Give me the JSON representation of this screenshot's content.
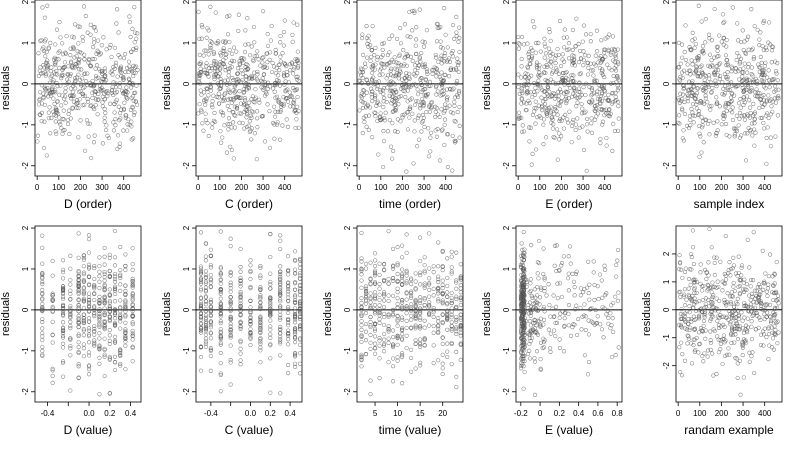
{
  "chart_data": [
    {
      "type": "scatter",
      "xlabel": "D (order)",
      "ylabel": "residuals",
      "xlim": [
        -10,
        480
      ],
      "ylim": [
        -2.25,
        2.05
      ],
      "xticks": [
        0,
        100,
        200,
        300,
        400
      ],
      "yticks": [
        -2,
        -1,
        0,
        1,
        2
      ],
      "ref_line_y": 0,
      "x_mode": "order",
      "n": 500
    },
    {
      "type": "scatter",
      "xlabel": "C (order)",
      "ylabel": "residuals",
      "xlim": [
        -10,
        480
      ],
      "ylim": [
        -2.25,
        2.05
      ],
      "xticks": [
        0,
        100,
        200,
        300,
        400
      ],
      "yticks": [
        -2,
        -1,
        0,
        1,
        2
      ],
      "ref_line_y": 0,
      "x_mode": "order",
      "n": 500
    },
    {
      "type": "scatter",
      "xlabel": "time (order)",
      "ylabel": "residuals",
      "xlim": [
        -10,
        480
      ],
      "ylim": [
        -2.25,
        2.05
      ],
      "xticks": [
        0,
        100,
        200,
        300,
        400
      ],
      "yticks": [
        -2,
        -1,
        0,
        1,
        2
      ],
      "ref_line_y": 0,
      "x_mode": "order",
      "n": 500
    },
    {
      "type": "scatter",
      "xlabel": "E (order)",
      "ylabel": "residuals",
      "xlim": [
        -10,
        480
      ],
      "ylim": [
        -2.25,
        2.05
      ],
      "xticks": [
        0,
        100,
        200,
        300,
        400
      ],
      "yticks": [
        -2,
        -1,
        0,
        1,
        2
      ],
      "ref_line_y": 0,
      "x_mode": "order",
      "n": 500
    },
    {
      "type": "scatter",
      "xlabel": "sample index",
      "ylabel": "residuals",
      "xlim": [
        -10,
        480
      ],
      "ylim": [
        -2.25,
        2.05
      ],
      "xticks": [
        0,
        100,
        200,
        300,
        400
      ],
      "yticks": [
        -2,
        -1,
        0,
        1,
        2
      ],
      "ref_line_y": 0,
      "x_mode": "order",
      "n": 500
    },
    {
      "type": "scatter",
      "xlabel": "D (value)",
      "ylabel": "residuals",
      "xlim": [
        -0.52,
        0.5
      ],
      "ylim": [
        -2.25,
        2.05
      ],
      "xticks": [
        -0.4,
        -0.2,
        0.0,
        0.2,
        0.4
      ],
      "xticklabels": [
        "-0.4",
        "",
        "0.0",
        "0.2",
        "0.4"
      ],
      "yticks": [
        -2,
        -1,
        0,
        1,
        2
      ],
      "ref_line_y": 0,
      "x_mode": "discrete",
      "x_levels": [
        -0.45,
        -0.35,
        -0.25,
        -0.18,
        -0.1,
        -0.05,
        0.0,
        0.05,
        0.1,
        0.15,
        0.2,
        0.25,
        0.3,
        0.35,
        0.42
      ],
      "n": 500
    },
    {
      "type": "scatter",
      "xlabel": "C (value)",
      "ylabel": "residuals",
      "xlim": [
        -0.55,
        0.52
      ],
      "ylim": [
        -2.25,
        2.05
      ],
      "xticks": [
        -0.4,
        -0.2,
        0.0,
        0.2,
        0.4
      ],
      "xticklabels": [
        "-0.4",
        "",
        "0.0",
        "0.2",
        "0.4"
      ],
      "yticks": [
        -2,
        -1,
        0,
        1,
        2
      ],
      "ref_line_y": 0,
      "x_mode": "discrete",
      "x_levels": [
        -0.5,
        -0.45,
        -0.4,
        -0.3,
        -0.2,
        -0.1,
        0.0,
        0.1,
        0.2,
        0.3,
        0.38,
        0.45,
        0.5
      ],
      "n": 500
    },
    {
      "type": "scatter",
      "xlabel": "time (value)",
      "ylabel": "residuals",
      "xlim": [
        1,
        24.5
      ],
      "ylim": [
        -2.25,
        2.05
      ],
      "xticks": [
        5,
        10,
        15,
        20
      ],
      "yticks": [
        -2,
        -1,
        0,
        1,
        2
      ],
      "ref_line_y": 0,
      "x_mode": "discrete",
      "x_levels": [
        2,
        3,
        4,
        5,
        6,
        7,
        8,
        9,
        10,
        11,
        12,
        13,
        14,
        15,
        16,
        17,
        18,
        19,
        20,
        21,
        22,
        23,
        24
      ],
      "n": 500
    },
    {
      "type": "scatter",
      "xlabel": "E (value)",
      "ylabel": "residuals",
      "xlim": [
        -0.25,
        0.85
      ],
      "ylim": [
        -2.25,
        2.05
      ],
      "xticks": [
        -0.2,
        0.0,
        0.2,
        0.4,
        0.6,
        0.8
      ],
      "yticks": [
        -2,
        -1,
        0,
        1,
        2
      ],
      "ref_line_y": 0,
      "x_mode": "skewed",
      "x_min": -0.2,
      "x_max": 0.82,
      "n": 500
    },
    {
      "type": "scatter",
      "xlabel": "randam example",
      "ylabel": "residuals",
      "xlim": [
        -10,
        480
      ],
      "ylim": [
        -3.3,
        3.0
      ],
      "xticks": [
        0,
        100,
        200,
        300,
        400
      ],
      "yticks": [
        -2,
        -1,
        0,
        1,
        2
      ],
      "ref_line_y": 0,
      "x_mode": "order",
      "n": 500
    }
  ],
  "style": {
    "point_color": "#555555",
    "axis_color": "#000000",
    "ref_line_color": "#000000",
    "background": "#ffffff"
  }
}
